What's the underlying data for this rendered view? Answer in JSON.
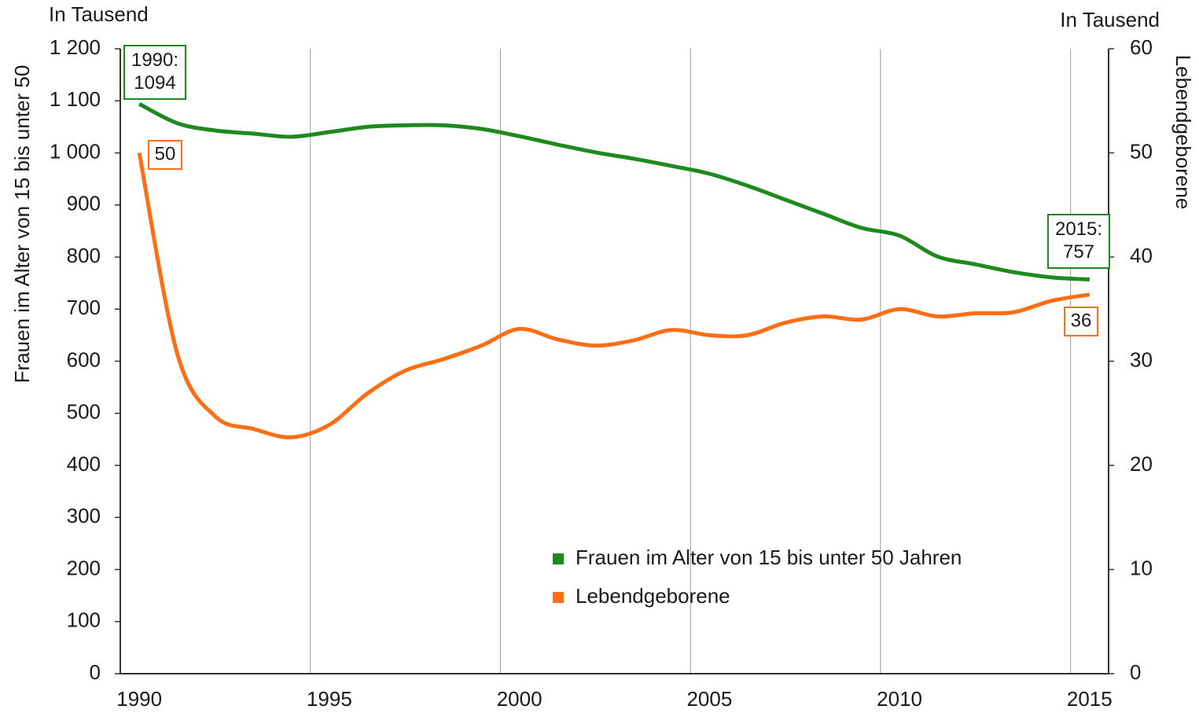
{
  "chart_data": {
    "type": "line",
    "units_left": "In Tausend",
    "units_right": "In Tausend",
    "ylabel": "Frauen im Alter von 15 bis unter 50",
    "y2label": "Lebendgeborene",
    "categories": [
      "1990",
      null,
      null,
      null,
      null,
      "1995",
      null,
      null,
      null,
      null,
      "2000",
      null,
      null,
      null,
      null,
      "2005",
      null,
      null,
      null,
      null,
      "2010",
      null,
      null,
      null,
      null,
      "2015"
    ],
    "series": [
      {
        "name": "Frauen im Alter von 15 bis unter 50 Jahren",
        "color": "#1e8a1e",
        "axis": "y",
        "values": [
          1094,
          1057,
          1043,
          1037,
          1031,
          1040,
          1050,
          1053,
          1053,
          1046,
          1032,
          1016,
          1001,
          989,
          975,
          960,
          937,
          910,
          883,
          856,
          841,
          801,
          786,
          771,
          761,
          757
        ]
      },
      {
        "name": "Lebendgeborene",
        "color": "#ff6e14",
        "axis": "y2",
        "values": [
          50,
          30.7,
          24.7,
          23.5,
          22.7,
          23.9,
          26.9,
          29.1,
          30.2,
          31.5,
          33.1,
          32.1,
          31.5,
          32.0,
          33.0,
          32.5,
          32.5,
          33.7,
          34.3,
          34.0,
          35.0,
          34.3,
          34.6,
          34.7,
          35.8,
          36.4
        ]
      }
    ],
    "annotations": [
      {
        "lines": [
          "1990:",
          "1094"
        ],
        "color": "#1e8a1e"
      },
      {
        "lines": [
          "50"
        ],
        "color": "#ff6e14"
      },
      {
        "lines": [
          "2015:",
          "757"
        ],
        "color": "#1e8a1e"
      },
      {
        "lines": [
          "36"
        ],
        "color": "#ff6e14"
      }
    ],
    "ylim": [
      0,
      1200
    ],
    "yticks": [
      0,
      100,
      200,
      300,
      400,
      500,
      600,
      700,
      800,
      900,
      {
        "value": 1000,
        "label": "1 000"
      },
      {
        "value": 1100,
        "label": "1 100"
      },
      {
        "value": 1200,
        "label": "1 200"
      }
    ],
    "y2lim": [
      0,
      60
    ],
    "y2ticks": [
      0,
      10,
      20,
      30,
      40,
      50,
      60
    ],
    "grid": true
  }
}
